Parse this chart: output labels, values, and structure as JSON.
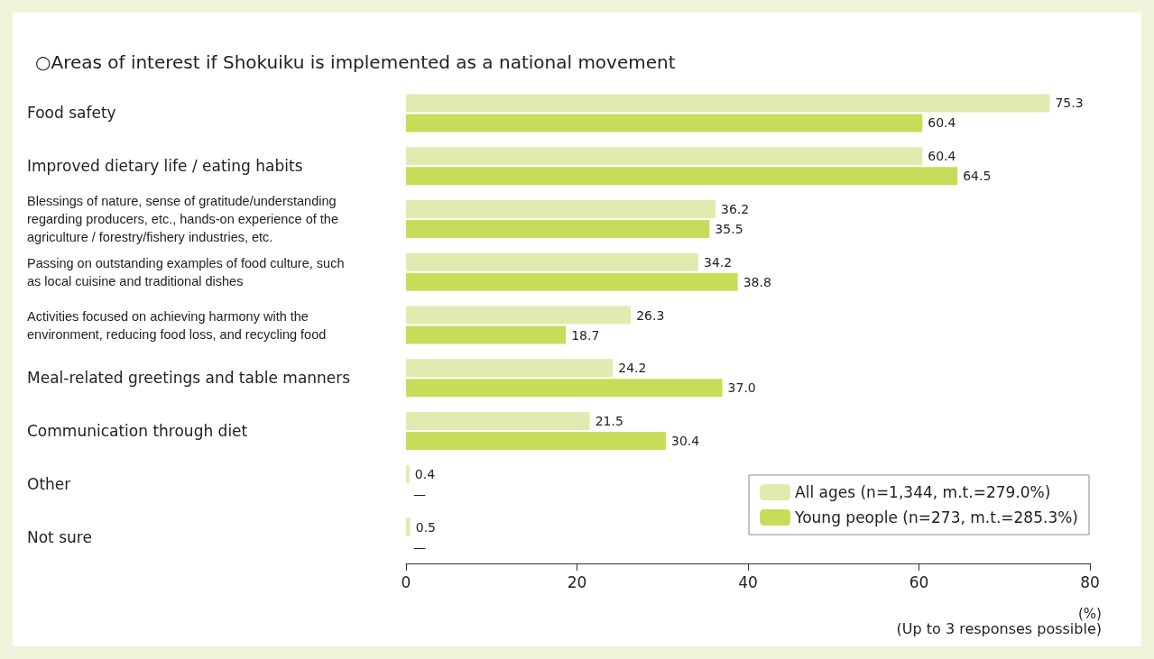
{
  "chart_data": {
    "type": "bar",
    "orientation": "horizontal",
    "title": "○Areas of interest if Shokuiku is implemented as a national movement",
    "xlabel": "(%)",
    "categories": [
      "Food safety",
      "Improved dietary life / eating habits",
      "Blessings of nature, sense of gratitude/understanding regarding producers, etc., hands-on experience of the agriculture / forestry/fishery industries, etc.",
      "Passing on outstanding examples of food culture, such as local cuisine and traditional dishes",
      "Activities focused on achieving harmony with the environment, reducing food loss, and recycling food",
      "Meal-related greetings and table manners",
      "Communication through diet",
      "Other",
      "Not sure"
    ],
    "series": [
      {
        "name": "All ages (n=1,344, m.t.=279.0%)",
        "color": "#e0ebb0",
        "values": [
          75.3,
          60.4,
          36.2,
          34.2,
          26.3,
          24.2,
          21.5,
          0.4,
          0.5
        ],
        "value_labels": [
          "75.3",
          "60.4",
          "36.2",
          "34.2",
          "26.3",
          "24.2",
          "21.5",
          "0.4",
          "0.5"
        ]
      },
      {
        "name": "Young people (n=273, m.t.=285.3%)",
        "color": "#c8dc5a",
        "values": [
          60.4,
          64.5,
          35.5,
          38.8,
          18.7,
          37.0,
          30.4,
          null,
          null
        ],
        "value_labels": [
          "60.4",
          "64.5",
          "35.5",
          "38.8",
          "18.7",
          "37.0",
          "30.4",
          "—",
          "—"
        ]
      }
    ],
    "xlim": [
      0,
      80
    ],
    "xticks": [
      0,
      20,
      40,
      60,
      80
    ],
    "grid": false,
    "legend": "bottom right",
    "annotations": [
      "(Up to 3 responses possible)"
    ]
  }
}
